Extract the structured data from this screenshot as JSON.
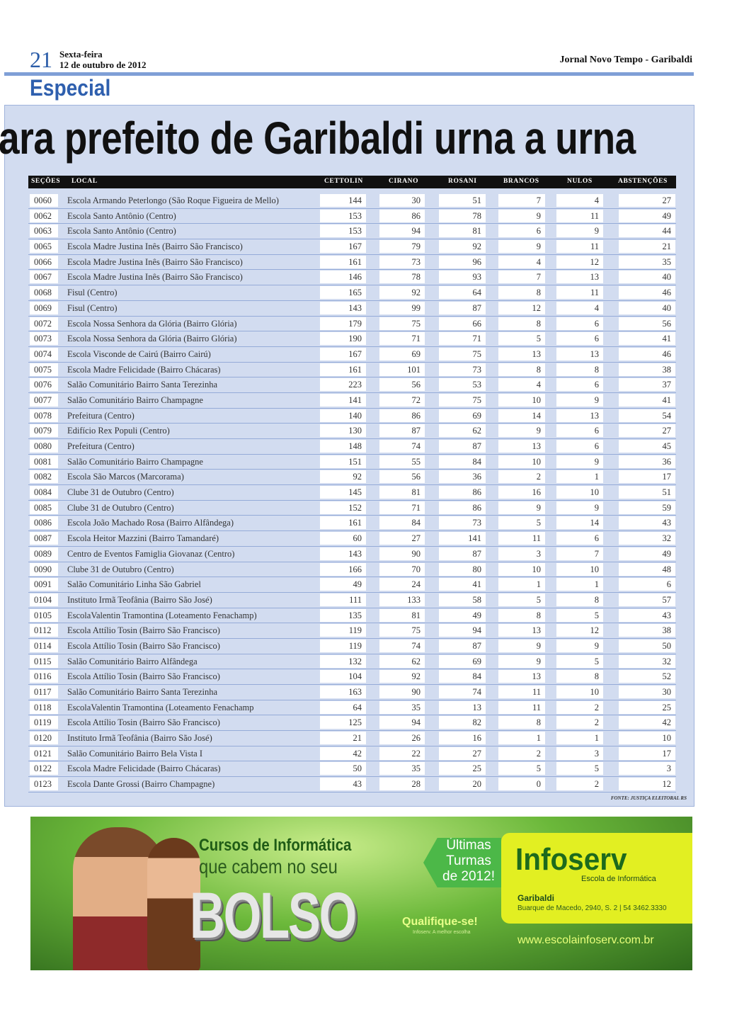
{
  "header": {
    "page_number": "21",
    "weekday": "Sexta-feira",
    "date": "12 de outubro de 2012",
    "paper": "Jornal Novo Tempo - Garibaldi",
    "section": "Especial"
  },
  "headline": "ara prefeito de Garibaldi urna a urna",
  "table": {
    "columns": [
      "SEÇÕES",
      "LOCAL",
      "CETTOLIN",
      "CIRANO",
      "ROSANI",
      "BRANCOS",
      "NULOS",
      "ABSTENÇÕES"
    ],
    "rows": [
      [
        "0060",
        "Escola Armando Peterlongo (São Roque Figueira de Mello)",
        "144",
        "30",
        "51",
        "7",
        "4",
        "27"
      ],
      [
        "0062",
        "Escola Santo Antônio (Centro)",
        "153",
        "86",
        "78",
        "9",
        "11",
        "49"
      ],
      [
        "0063",
        "Escola Santo Antônio (Centro)",
        "153",
        "94",
        "81",
        "6",
        "9",
        "44"
      ],
      [
        "0065",
        "Escola Madre Justina Inês (Bairro São Francisco)",
        "167",
        "79",
        "92",
        "9",
        "11",
        "21"
      ],
      [
        "0066",
        "Escola Madre Justina Inês (Bairro São Francisco)",
        "161",
        "73",
        "96",
        "4",
        "12",
        "35"
      ],
      [
        "0067",
        "Escola Madre Justina Inês (Bairro São Francisco)",
        "146",
        "78",
        "93",
        "7",
        "13",
        "40"
      ],
      [
        "0068",
        "Fisul (Centro)",
        "165",
        "92",
        "64",
        "8",
        "11",
        "46"
      ],
      [
        "0069",
        "Fisul (Centro)",
        "143",
        "99",
        "87",
        "12",
        "4",
        "40"
      ],
      [
        "0072",
        "Escola Nossa Senhora da Glória (Bairro Glória)",
        "179",
        "75",
        "66",
        "8",
        "6",
        "56"
      ],
      [
        "0073",
        "Escola Nossa Senhora da Glória (Bairro Glória)",
        "190",
        "71",
        "71",
        "5",
        "6",
        "41"
      ],
      [
        "0074",
        "Escola Visconde de Cairú (Bairro Cairú)",
        "167",
        "69",
        "75",
        "13",
        "13",
        "46"
      ],
      [
        "0075",
        "Escola Madre Felicidade (Bairro Chácaras)",
        "161",
        "101",
        "73",
        "8",
        "8",
        "38"
      ],
      [
        "0076",
        "Salão Comunitário Bairro Santa Terezinha",
        "223",
        "56",
        "53",
        "4",
        "6",
        "37"
      ],
      [
        "0077",
        "Salão Comunitário Bairro Champagne",
        "141",
        "72",
        "75",
        "10",
        "9",
        "41"
      ],
      [
        "0078",
        "Prefeitura (Centro)",
        "140",
        "86",
        "69",
        "14",
        "13",
        "54"
      ],
      [
        "0079",
        "Edifício Rex Populi (Centro)",
        "130",
        "87",
        "62",
        "9",
        "6",
        "27"
      ],
      [
        "0080",
        "Prefeitura (Centro)",
        "148",
        "74",
        "87",
        "13",
        "6",
        "45"
      ],
      [
        "0081",
        "Salão Comunitário Bairro Champagne",
        "151",
        "55",
        "84",
        "10",
        "9",
        "36"
      ],
      [
        "0082",
        "Escola São Marcos (Marcorama)",
        "92",
        "56",
        "36",
        "2",
        "1",
        "17"
      ],
      [
        "0084",
        "Clube 31 de Outubro (Centro)",
        "145",
        "81",
        "86",
        "16",
        "10",
        "51"
      ],
      [
        "0085",
        "Clube 31 de Outubro (Centro)",
        "152",
        "71",
        "86",
        "9",
        "9",
        "59"
      ],
      [
        "0086",
        "Escola João Machado Rosa (Bairro Alfândega)",
        "161",
        "84",
        "73",
        "5",
        "14",
        "43"
      ],
      [
        "0087",
        "Escola Heitor Mazzini (Bairro Tamandaré)",
        "60",
        "27",
        "141",
        "11",
        "6",
        "32"
      ],
      [
        "0089",
        "Centro de Eventos Famiglia Giovanaz (Centro)",
        "143",
        "90",
        "87",
        "3",
        "7",
        "49"
      ],
      [
        "0090",
        "Clube 31 de Outubro (Centro)",
        "166",
        "70",
        "80",
        "10",
        "10",
        "48"
      ],
      [
        "0091",
        "Salão Comunitário Linha São Gabriel",
        "49",
        "24",
        "41",
        "1",
        "1",
        "6"
      ],
      [
        "0104",
        "Instituto Irmã Teofânia (Bairro São José)",
        "111",
        "133",
        "58",
        "5",
        "8",
        "57"
      ],
      [
        "0105",
        "EscolaValentin Tramontina (Loteamento Fenachamp)",
        "135",
        "81",
        "49",
        "8",
        "5",
        "43"
      ],
      [
        "0112",
        "Escola Attílio Tosin (Bairro São Francisco)",
        "119",
        "75",
        "94",
        "13",
        "12",
        "38"
      ],
      [
        "0114",
        "Escola Attílio Tosin (Bairro São Francisco)",
        "119",
        "74",
        "87",
        "9",
        "9",
        "50"
      ],
      [
        "0115",
        "Salão Comunitário Bairro Alfândega",
        "132",
        "62",
        "69",
        "9",
        "5",
        "32"
      ],
      [
        "0116",
        "Escola Attílio Tosin (Bairro São Francisco)",
        "104",
        "92",
        "84",
        "13",
        "8",
        "52"
      ],
      [
        "0117",
        "Salão Comunitário Bairro Santa Terezinha",
        "163",
        "90",
        "74",
        "11",
        "10",
        "30"
      ],
      [
        "0118",
        "EscolaValentin Tramontina (Loteamento Fenachamp",
        "64",
        "35",
        "13",
        "11",
        "2",
        "25"
      ],
      [
        "0119",
        "Escola Attílio Tosin (Bairro São Francisco)",
        "125",
        "94",
        "82",
        "8",
        "2",
        "42"
      ],
      [
        "0120",
        "Instituto Irmã Teofânia (Bairro São José)",
        "21",
        "26",
        "16",
        "1",
        "1",
        "10"
      ],
      [
        "0121",
        "Salão Comunitário Bairro Bela Vista I",
        "42",
        "22",
        "27",
        "2",
        "3",
        "17"
      ],
      [
        "0122",
        "Escola Madre Felicidade (Bairro Chácaras)",
        "50",
        "35",
        "25",
        "5",
        "5",
        "3"
      ],
      [
        "0123",
        "Escola Dante Grossi (Bairro Champagne)",
        "43",
        "28",
        "20",
        "0",
        "2",
        "12"
      ]
    ],
    "source": "FONTE: JUSTIÇA ELEITORAL RS"
  },
  "ad": {
    "line1": "Cursos de Informática",
    "line2": "que cabem no seu",
    "big": "BOLSO",
    "turmas": [
      "Últimas",
      "Turmas",
      "de 2012!"
    ],
    "qualifique": "Qualifique-se!",
    "qualifique_sub": "Infoserv. A melhor escolha",
    "brand": "Infoserv",
    "brand_sub": "Escola de Informática",
    "city": "Garibaldi",
    "address": "Buarque de Macedo, 2940, S. 2 | 54 3462.3330",
    "url": "www.escolainfoserv.com.br",
    "colors": {
      "green": "#4cb848",
      "yellow": "#e2ef22",
      "dark_green": "#1d6a1c"
    }
  },
  "colors": {
    "accent_blue": "#2e5fae",
    "box_bg": "#d2dcf0"
  }
}
